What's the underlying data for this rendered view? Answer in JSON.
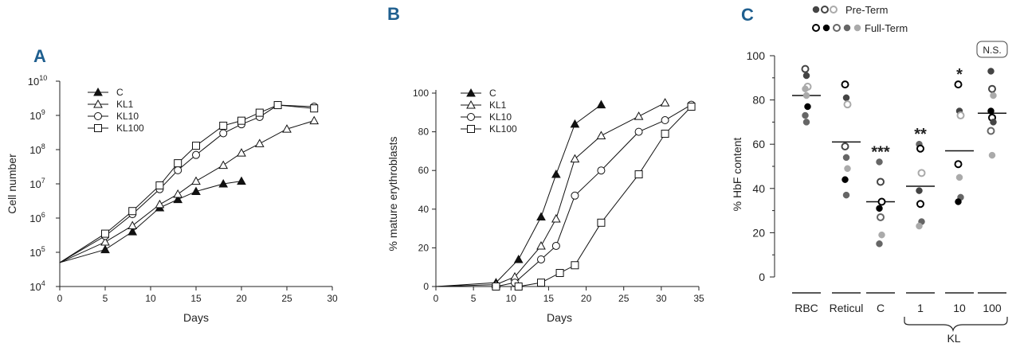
{
  "chart_data": [
    {
      "panel": "A",
      "type": "line",
      "xlabel": "Days",
      "ylabel": "Cell number",
      "x_ticks": [
        0,
        5,
        10,
        15,
        20,
        25,
        30
      ],
      "y_scale": "log",
      "y_tick_labels": [
        {
          "base": "10",
          "exp": "4"
        },
        {
          "base": "10",
          "exp": "5"
        },
        {
          "base": "10",
          "exp": "6"
        },
        {
          "base": "10",
          "exp": "7"
        },
        {
          "base": "10",
          "exp": "8"
        },
        {
          "base": "10",
          "exp": "9"
        },
        {
          "base": "10",
          "exp": "10"
        }
      ],
      "xlim": [
        0,
        30
      ],
      "ylim_exponent": [
        4,
        10
      ],
      "legend_position": "top-left",
      "series": [
        {
          "name": "C",
          "marker": "filled-triangle",
          "x": [
            0,
            5,
            8,
            11,
            13,
            15,
            18,
            20
          ],
          "y": [
            50000,
            120000,
            400000,
            2000000,
            3500000,
            6000000,
            10000000,
            12000000
          ]
        },
        {
          "name": "KL1",
          "marker": "open-triangle",
          "x": [
            0,
            5,
            8,
            11,
            13,
            15,
            18,
            20,
            22,
            25,
            28
          ],
          "y": [
            50000,
            200000,
            600000,
            2500000,
            5000000,
            12000000,
            35000000,
            80000000,
            150000000,
            400000000,
            700000000
          ]
        },
        {
          "name": "KL10",
          "marker": "open-circle",
          "x": [
            0,
            5,
            8,
            11,
            13,
            15,
            18,
            20,
            22,
            24,
            28
          ],
          "y": [
            50000,
            300000,
            1300000,
            7000000,
            25000000,
            70000000,
            300000000,
            550000000,
            900000000,
            2000000000,
            1800000000
          ]
        },
        {
          "name": "KL100",
          "marker": "open-square",
          "x": [
            0,
            5,
            8,
            11,
            13,
            15,
            18,
            20,
            22,
            24,
            28
          ],
          "y": [
            50000,
            350000,
            1600000,
            9000000,
            40000000,
            130000000,
            500000000,
            700000000,
            1200000000,
            2000000000,
            1600000000
          ]
        }
      ]
    },
    {
      "panel": "B",
      "type": "line",
      "xlabel": "Days",
      "ylabel": "% mature erythroblasts",
      "x_ticks": [
        0,
        5,
        10,
        15,
        20,
        25,
        30,
        35
      ],
      "y_ticks": [
        0,
        20,
        40,
        60,
        80,
        100
      ],
      "xlim": [
        0,
        35
      ],
      "ylim": [
        0,
        100
      ],
      "legend_position": "top-left",
      "series": [
        {
          "name": "C",
          "marker": "filled-triangle",
          "x": [
            0,
            8,
            11,
            14,
            16,
            18.5,
            22
          ],
          "y": [
            0,
            2,
            14,
            36,
            58,
            84,
            94
          ]
        },
        {
          "name": "KL1",
          "marker": "open-triangle",
          "x": [
            0,
            8,
            10.5,
            14,
            16,
            18.5,
            22,
            27,
            30.5
          ],
          "y": [
            0,
            1,
            5,
            21,
            35,
            66,
            78,
            88,
            95
          ]
        },
        {
          "name": "KL10",
          "marker": "open-circle",
          "x": [
            0,
            8,
            10.5,
            14,
            16,
            18.5,
            22,
            27,
            30.5,
            34
          ],
          "y": [
            0,
            0,
            2,
            14,
            21,
            47,
            60,
            80,
            86,
            94
          ]
        },
        {
          "name": "KL100",
          "marker": "open-square",
          "x": [
            0,
            8,
            11,
            14,
            16.5,
            18.5,
            22,
            27,
            30.5,
            34
          ],
          "y": [
            0,
            0,
            0,
            2,
            7,
            11,
            33,
            58,
            79,
            93
          ]
        }
      ]
    },
    {
      "panel": "C",
      "type": "scatter",
      "ylabel": "% HbF content",
      "y_ticks": [
        0,
        20,
        40,
        60,
        80,
        100
      ],
      "ylim": [
        0,
        100
      ],
      "categories": [
        "RBC",
        "Reticul",
        "C",
        "1",
        "10",
        "100"
      ],
      "group_label": "KL",
      "legend": [
        "Pre-Term",
        "Full-Term"
      ],
      "legend_position": "top",
      "significance": [
        "",
        "",
        "***",
        "**",
        "*",
        "N.S."
      ],
      "means": [
        82,
        61,
        34,
        41,
        57,
        74
      ],
      "colors": {
        "dark": "#444444",
        "black": "#000000",
        "mid": "#666666",
        "light": "#aaaaaa"
      },
      "points": [
        [
          {
            "y": 94,
            "c": "dark",
            "open": true
          },
          {
            "y": 91,
            "c": "dark",
            "open": false
          },
          {
            "y": 86,
            "c": "light",
            "open": true
          },
          {
            "y": 85,
            "c": "light",
            "open": false
          },
          {
            "y": 82,
            "c": "light",
            "open": false
          },
          {
            "y": 77,
            "c": "black",
            "open": false
          },
          {
            "y": 73,
            "c": "mid",
            "open": false
          },
          {
            "y": 70,
            "c": "mid",
            "open": false
          }
        ],
        [
          {
            "y": 87,
            "c": "black",
            "open": true
          },
          {
            "y": 81,
            "c": "dark",
            "open": false
          },
          {
            "y": 78,
            "c": "light",
            "open": true
          },
          {
            "y": 59,
            "c": "dark",
            "open": true
          },
          {
            "y": 54,
            "c": "mid",
            "open": false
          },
          {
            "y": 49,
            "c": "light",
            "open": false
          },
          {
            "y": 44,
            "c": "black",
            "open": false
          },
          {
            "y": 37,
            "c": "mid",
            "open": false
          }
        ],
        [
          {
            "y": 52,
            "c": "mid",
            "open": false
          },
          {
            "y": 43,
            "c": "dark",
            "open": true
          },
          {
            "y": 34,
            "c": "black",
            "open": true
          },
          {
            "y": 31,
            "c": "black",
            "open": false
          },
          {
            "y": 27,
            "c": "mid",
            "open": true
          },
          {
            "y": 19,
            "c": "light",
            "open": false
          },
          {
            "y": 15,
            "c": "mid",
            "open": false
          }
        ],
        [
          {
            "y": 60,
            "c": "mid",
            "open": false
          },
          {
            "y": 58,
            "c": "black",
            "open": true
          },
          {
            "y": 47,
            "c": "light",
            "open": true
          },
          {
            "y": 39,
            "c": "dark",
            "open": false
          },
          {
            "y": 33,
            "c": "black",
            "open": true
          },
          {
            "y": 25,
            "c": "mid",
            "open": false
          },
          {
            "y": 23,
            "c": "light",
            "open": false
          }
        ],
        [
          {
            "y": 87,
            "c": "black",
            "open": true
          },
          {
            "y": 75,
            "c": "dark",
            "open": false
          },
          {
            "y": 73,
            "c": "light",
            "open": true
          },
          {
            "y": 51,
            "c": "black",
            "open": true
          },
          {
            "y": 45,
            "c": "light",
            "open": false
          },
          {
            "y": 36,
            "c": "mid",
            "open": false
          },
          {
            "y": 34,
            "c": "black",
            "open": false
          }
        ],
        [
          {
            "y": 93,
            "c": "dark",
            "open": false
          },
          {
            "y": 85,
            "c": "dark",
            "open": true
          },
          {
            "y": 82,
            "c": "light",
            "open": false
          },
          {
            "y": 75,
            "c": "black",
            "open": false
          },
          {
            "y": 72,
            "c": "black",
            "open": true
          },
          {
            "y": 70,
            "c": "dark",
            "open": false
          },
          {
            "y": 66,
            "c": "mid",
            "open": true
          },
          {
            "y": 55,
            "c": "light",
            "open": false
          }
        ]
      ]
    }
  ]
}
